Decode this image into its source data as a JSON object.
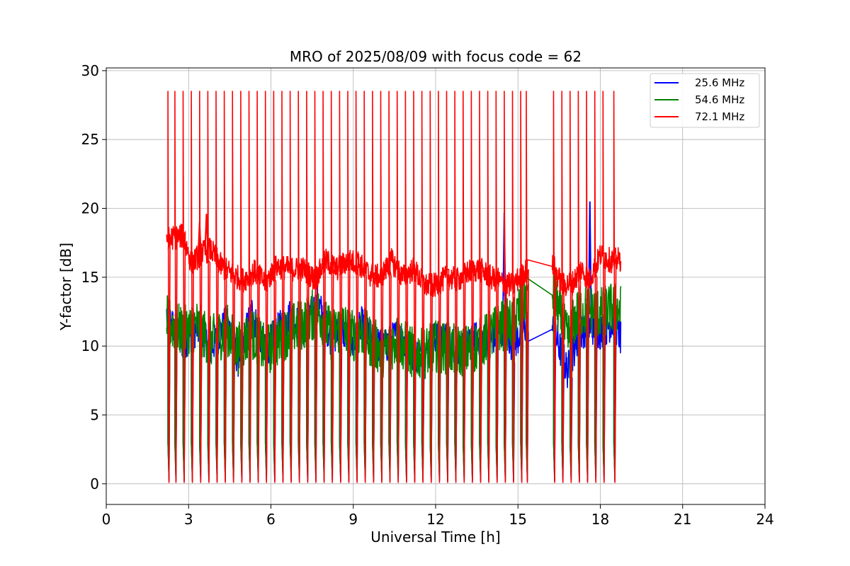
{
  "chart_data": {
    "type": "line",
    "title": "MRO of 2025/08/09 with focus code = 62",
    "xlabel": "Universal Time [h]",
    "ylabel": "Y-factor [dB]",
    "xlim": [
      0,
      24
    ],
    "ylim": [
      -1.5,
      30.2
    ],
    "xticks": [
      0,
      3,
      6,
      9,
      12,
      15,
      18,
      21,
      24
    ],
    "yticks": [
      0,
      5,
      10,
      15,
      20,
      25,
      30
    ],
    "grid": true,
    "legend_position": "top-right",
    "data_start_h": 2.2,
    "data_end_h": 18.75,
    "gap_h": [
      15.35,
      16.25
    ],
    "sweep_times_h": [
      2.25,
      2.5,
      2.8,
      3.1,
      3.4,
      3.7,
      4.0,
      4.3,
      4.6,
      4.9,
      5.2,
      5.5,
      5.8,
      6.1,
      6.4,
      6.7,
      7.0,
      7.3,
      7.6,
      7.9,
      8.2,
      8.5,
      8.8,
      9.1,
      9.4,
      9.7,
      10.0,
      10.3,
      10.6,
      10.9,
      11.2,
      11.5,
      11.8,
      12.1,
      12.4,
      12.7,
      13.0,
      13.3,
      13.6,
      13.9,
      14.2,
      14.5,
      14.8,
      15.1,
      15.3,
      16.3,
      16.6,
      16.9,
      17.2,
      17.5,
      17.8,
      18.1,
      18.5
    ],
    "series": [
      {
        "name": "25.6 MHz",
        "color": "#0000ff",
        "sweep_min": 0.2,
        "sweep_max": 3.0,
        "baseline": [
          [
            2.2,
            12.3
          ],
          [
            2.8,
            10.2
          ],
          [
            3.3,
            11.3
          ],
          [
            3.8,
            9.8
          ],
          [
            4.4,
            11.8
          ],
          [
            4.8,
            9.0
          ],
          [
            5.3,
            12.5
          ],
          [
            5.8,
            9.5
          ],
          [
            6.2,
            11.0
          ],
          [
            6.7,
            12.2
          ],
          [
            7.2,
            11.2
          ],
          [
            7.7,
            13.2
          ],
          [
            8.2,
            10.5
          ],
          [
            8.6,
            11.2
          ],
          [
            9.0,
            10.0
          ],
          [
            9.3,
            11.6
          ],
          [
            9.6,
            10.6
          ],
          [
            10.1,
            9.8
          ],
          [
            10.6,
            10.8
          ],
          [
            11.1,
            9.6
          ],
          [
            11.5,
            9.2
          ],
          [
            12.0,
            10.6
          ],
          [
            12.5,
            10.3
          ],
          [
            13.0,
            9.6
          ],
          [
            13.5,
            10.6
          ],
          [
            14.0,
            10.4
          ],
          [
            14.5,
            11.5
          ],
          [
            14.8,
            10.0
          ],
          [
            15.3,
            11.5
          ],
          [
            16.3,
            11.2
          ],
          [
            16.8,
            8.2
          ],
          [
            17.2,
            10.8
          ],
          [
            17.6,
            11.5
          ],
          [
            18.0,
            11.0
          ],
          [
            18.5,
            11.8
          ],
          [
            18.75,
            10.5
          ]
        ],
        "spikes": [
          [
            14.5,
            19.7
          ],
          [
            17.62,
            20.5
          ]
        ],
        "noise": 1.3
      },
      {
        "name": "54.6 MHz",
        "color": "#008000",
        "sweep_min": 0.3,
        "sweep_max": 3.0,
        "baseline": [
          [
            2.2,
            11.8
          ],
          [
            2.8,
            11.0
          ],
          [
            3.3,
            11.5
          ],
          [
            3.8,
            10.3
          ],
          [
            4.4,
            11.2
          ],
          [
            4.8,
            9.8
          ],
          [
            5.3,
            11.0
          ],
          [
            5.8,
            9.6
          ],
          [
            6.2,
            10.3
          ],
          [
            6.7,
            11.2
          ],
          [
            7.2,
            11.6
          ],
          [
            7.7,
            12.6
          ],
          [
            8.2,
            10.8
          ],
          [
            8.6,
            11.5
          ],
          [
            9.0,
            10.7
          ],
          [
            9.3,
            11.2
          ],
          [
            9.6,
            10.4
          ],
          [
            10.1,
            9.6
          ],
          [
            10.6,
            10.5
          ],
          [
            11.1,
            9.6
          ],
          [
            11.5,
            9.4
          ],
          [
            12.0,
            10.0
          ],
          [
            12.5,
            9.8
          ],
          [
            13.0,
            9.6
          ],
          [
            13.5,
            10.0
          ],
          [
            14.0,
            10.8
          ],
          [
            14.5,
            11.6
          ],
          [
            14.8,
            11.5
          ],
          [
            15.3,
            13.7
          ],
          [
            16.3,
            13.7
          ],
          [
            16.8,
            10.5
          ],
          [
            17.2,
            12.5
          ],
          [
            17.6,
            12.6
          ],
          [
            18.0,
            12.4
          ],
          [
            18.5,
            12.8
          ],
          [
            18.75,
            12.6
          ]
        ],
        "spikes": [],
        "noise": 1.9
      },
      {
        "name": "72.1 MHz",
        "color": "#ff0000",
        "sweep_min": 0.1,
        "sweep_max": 28.5,
        "baseline": [
          [
            2.2,
            17.8
          ],
          [
            2.8,
            18.0
          ],
          [
            3.1,
            16.0
          ],
          [
            3.5,
            16.8
          ],
          [
            3.8,
            17.0
          ],
          [
            4.2,
            15.8
          ],
          [
            4.6,
            15.2
          ],
          [
            5.0,
            14.8
          ],
          [
            5.4,
            15.4
          ],
          [
            5.8,
            14.6
          ],
          [
            6.2,
            15.8
          ],
          [
            6.7,
            15.6
          ],
          [
            7.2,
            15.6
          ],
          [
            7.6,
            14.8
          ],
          [
            8.0,
            16.2
          ],
          [
            8.4,
            15.6
          ],
          [
            8.8,
            16.2
          ],
          [
            9.2,
            16.0
          ],
          [
            9.6,
            15.2
          ],
          [
            10.0,
            15.0
          ],
          [
            10.4,
            16.2
          ],
          [
            10.8,
            15.0
          ],
          [
            11.2,
            15.6
          ],
          [
            11.6,
            14.4
          ],
          [
            12.0,
            14.4
          ],
          [
            12.4,
            15.0
          ],
          [
            12.8,
            14.8
          ],
          [
            13.2,
            15.4
          ],
          [
            13.6,
            15.6
          ],
          [
            14.0,
            15.0
          ],
          [
            14.4,
            14.6
          ],
          [
            14.8,
            14.4
          ],
          [
            15.3,
            15.5
          ],
          [
            16.3,
            15.8
          ],
          [
            16.6,
            14.4
          ],
          [
            17.0,
            14.6
          ],
          [
            17.3,
            15.6
          ],
          [
            17.6,
            14.8
          ],
          [
            18.0,
            16.6
          ],
          [
            18.4,
            16.2
          ],
          [
            18.75,
            16.3
          ]
        ],
        "spikes": [
          [
            3.4,
            19.0
          ],
          [
            3.65,
            19.6
          ],
          [
            7.65,
            15.8
          ]
        ],
        "noise": 0.9
      }
    ]
  }
}
